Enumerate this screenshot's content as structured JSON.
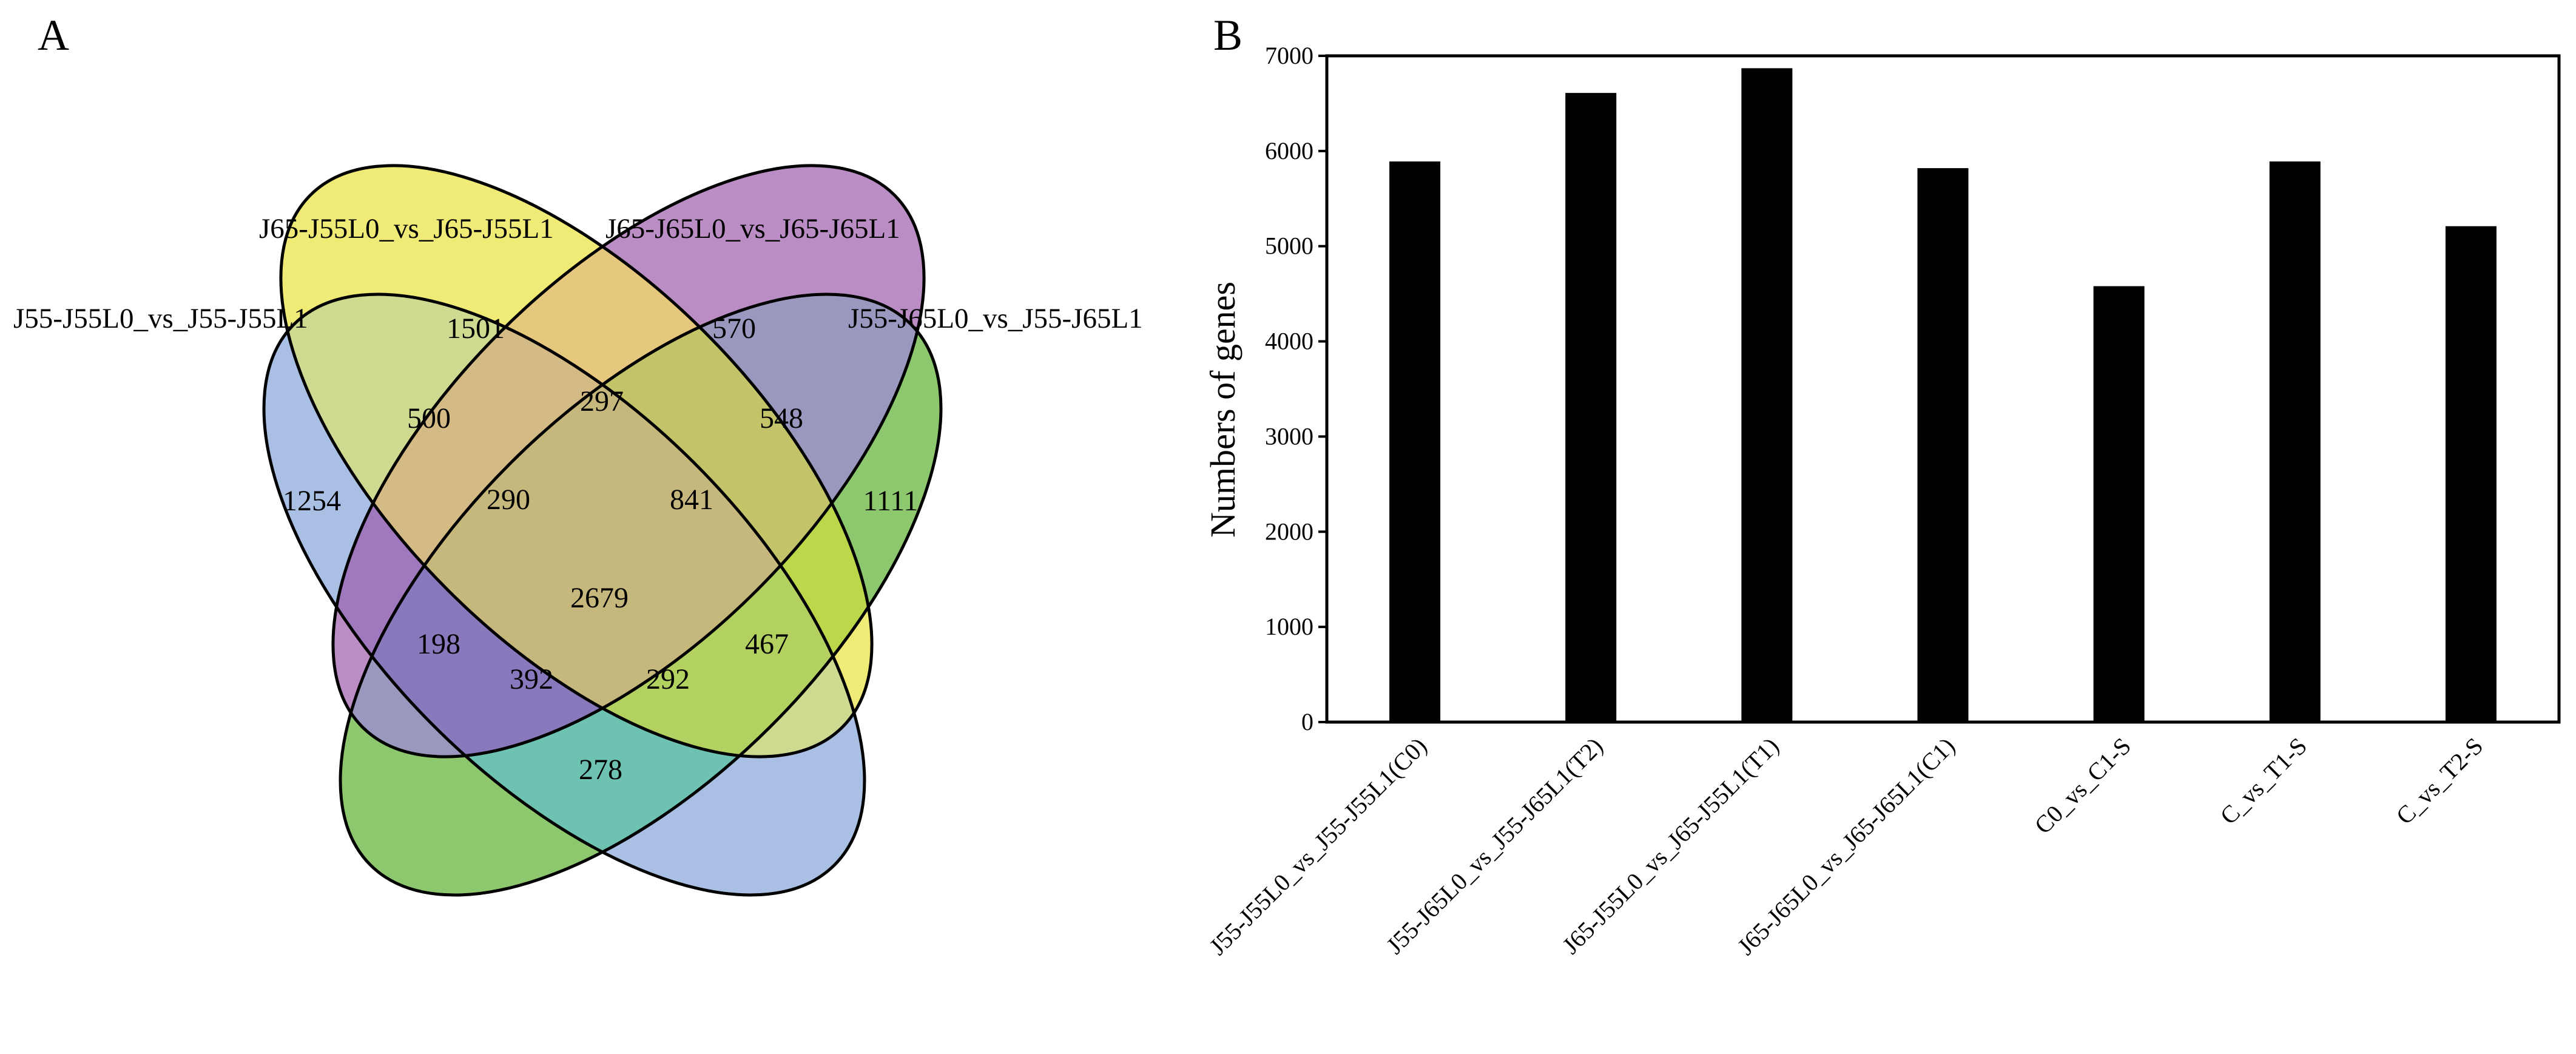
{
  "panels": {
    "a_label": "A",
    "b_label": "B"
  },
  "venn": {
    "sets": [
      {
        "name": "J55-J55L0_vs_J55-J55L1",
        "color": "#a9bfe3"
      },
      {
        "name": "J65-J55L0_vs_J65-J55L1",
        "color": "#f0eb77"
      },
      {
        "name": "J65-J65L0_vs_J65-J65L1",
        "color": "#bb8dc5"
      },
      {
        "name": "J55-J65L0_vs_J55-J65L1",
        "color": "#8ec86e"
      }
    ],
    "regions": [
      {
        "id": "only-s1",
        "value": "1254",
        "color": "#a9bfe3"
      },
      {
        "id": "only-s2",
        "value": "1501",
        "color": "#f0eb77"
      },
      {
        "id": "only-s3",
        "value": "570",
        "color": "#bb8dc5"
      },
      {
        "id": "only-s4",
        "value": "1111",
        "color": "#8ec86e"
      },
      {
        "id": "s1-s2",
        "value": "500",
        "color": "#cfd990"
      },
      {
        "id": "s2-s3",
        "value": "297",
        "color": "#e6c77e"
      },
      {
        "id": "s3-s4",
        "value": "548",
        "color": "#9b98c0"
      },
      {
        "id": "s1-s2-s3",
        "value": "290",
        "color": "#d4ba85"
      },
      {
        "id": "s2-s3-s4",
        "value": "841",
        "color": "#c3c46a"
      },
      {
        "id": "all",
        "value": "2679",
        "color": "#c6b87c"
      },
      {
        "id": "s1-s3",
        "value": "198",
        "color": "#9f78bd"
      },
      {
        "id": "s1-s3-s4",
        "value": "392",
        "color": "#8a78bd"
      },
      {
        "id": "s1-s2-s4",
        "value": "292",
        "color": "#b3d160"
      },
      {
        "id": "s2-s4",
        "value": "467",
        "color": "#bcd84a"
      },
      {
        "id": "s1-s4",
        "value": "278",
        "color": "#6dc2b2"
      }
    ]
  },
  "chart_data": {
    "type": "bar",
    "title": "",
    "xlabel": "",
    "ylabel": "Numbers of genes",
    "ylim": [
      0,
      7000
    ],
    "yticks": [
      0,
      1000,
      2000,
      3000,
      4000,
      5000,
      6000,
      7000
    ],
    "categories": [
      "J55-J55L0_vs_J55-J55L1(C0)",
      "J55-J65L0_vs_J55-J65L1(T2)",
      "J65-J55L0_vs_J65-J55L1(T1)",
      "J65-J65L0_vs_J65-J65L1(C1)",
      "C0_vs_C1-S",
      "C_vs_T1-S",
      "C_vs_T2-S"
    ],
    "values": [
      5890,
      6610,
      6870,
      5820,
      4580,
      5890,
      5210
    ],
    "bar_color": "#000000"
  }
}
